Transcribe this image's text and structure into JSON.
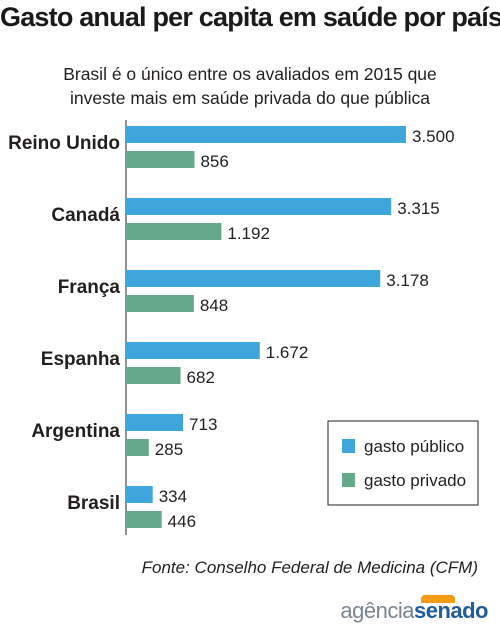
{
  "title": "Gasto anual per capita em saúde por país",
  "subtitle_line1": "Brasil é o único entre os avaliados em 2015 que",
  "subtitle_line2": "investe mais em saúde privada do que pública",
  "source": "Fonte: Conselho Federal de Medicina (CFM)",
  "logo": {
    "part1": "agência",
    "part2": "senado"
  },
  "colors": {
    "publico": "#3fa6dc",
    "privado": "#64a98a"
  },
  "chart_data": {
    "type": "bar",
    "orientation": "horizontal",
    "categories": [
      "Reino Unido",
      "Canadá",
      "França",
      "Espanha",
      "Argentina",
      "Brasil"
    ],
    "series": [
      {
        "name": "gasto público",
        "values": [
          3500,
          3315,
          3178,
          1672,
          713,
          334
        ],
        "labels": [
          "3.500",
          "3.315",
          "3.178",
          "1.672",
          "713",
          "334"
        ]
      },
      {
        "name": "gasto privado",
        "values": [
          856,
          1192,
          848,
          682,
          285,
          446
        ],
        "labels": [
          "856",
          "1.192",
          "848",
          "682",
          "285",
          "446"
        ]
      }
    ],
    "legend_position": "bottom-right",
    "grid": false
  }
}
